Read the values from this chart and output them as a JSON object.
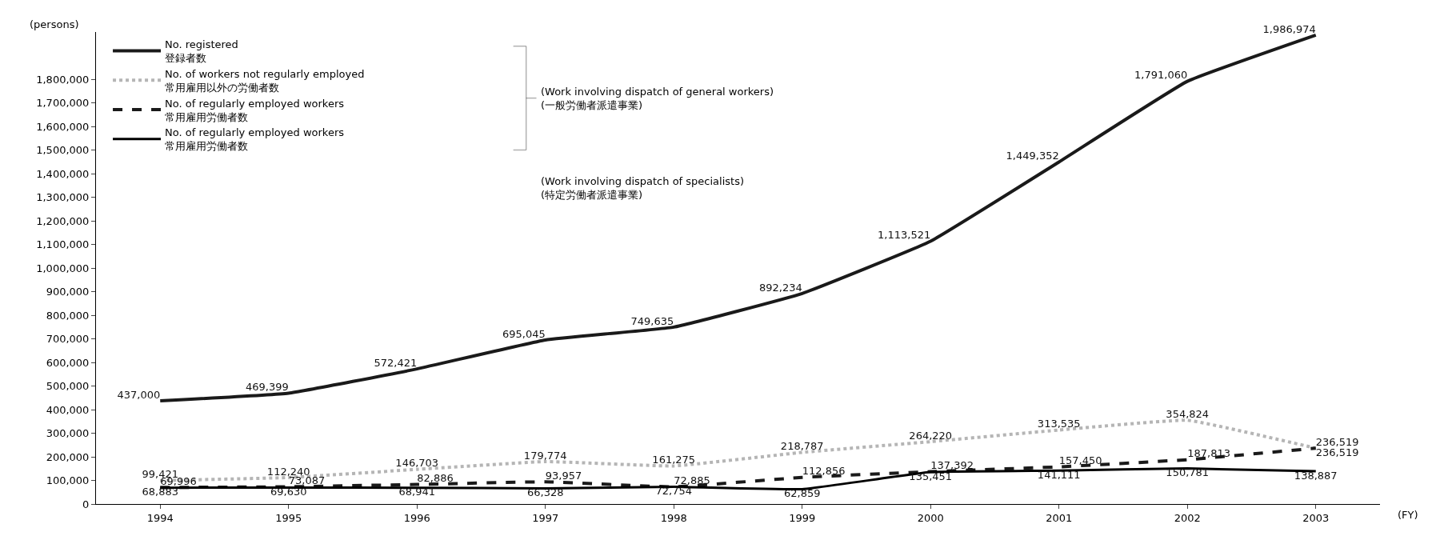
{
  "chart_data": {
    "type": "line",
    "ylabel": "(persons)",
    "xlabel": "(FY)",
    "categories": [
      "1994",
      "1995",
      "1996",
      "1997",
      "1998",
      "1999",
      "2000",
      "2001",
      "2002",
      "2003"
    ],
    "ylim": [
      0,
      2000000
    ],
    "yticks": [
      0,
      {
        "value": 100000,
        "label": "100,000"
      },
      {
        "value": 200000,
        "label": "200,000"
      },
      {
        "value": 300000,
        "label": "300,000"
      },
      {
        "value": 400000,
        "label": "400,000"
      },
      {
        "value": 500000,
        "label": "500,000"
      },
      {
        "value": 600000,
        "label": "600,000"
      },
      {
        "value": 700000,
        "label": "700,000"
      },
      {
        "value": 800000,
        "label": "800,000"
      },
      {
        "value": 900000,
        "label": "900,000"
      },
      {
        "value": 1000000,
        "label": "1,000,000"
      },
      {
        "value": 1100000,
        "label": "1,100,000"
      },
      {
        "value": 1200000,
        "label": "1,200,000"
      },
      {
        "value": 1300000,
        "label": "1,300,000"
      },
      {
        "value": 1400000,
        "label": "1,400,000"
      },
      {
        "value": 1500000,
        "label": "1,500,000"
      },
      {
        "value": 1600000,
        "label": "1,600,000"
      },
      {
        "value": 1700000,
        "label": "1,700,000"
      },
      {
        "value": 1800000,
        "label": "1,800,000"
      }
    ],
    "series": [
      {
        "name": "No. registered\n登録者数",
        "color": "#1a1a1a",
        "line_style": "solid",
        "values": [
          437000,
          469399,
          572421,
          695045,
          749635,
          892234,
          1113521,
          1449352,
          1791060,
          1986974
        ],
        "value_labels": [
          "437,000",
          "469,399",
          "572,421",
          "695,045",
          "749,635",
          "892,234",
          "1,113,521",
          "1,449,352",
          "1,791,060",
          "1,986,974"
        ]
      },
      {
        "name": "No. of workers not regularly employed\n常用雇用以外の労働者数",
        "color": "#b5b5b5",
        "line_style": "dotted",
        "values": [
          99421,
          112240,
          146703,
          179774,
          161275,
          218787,
          264220,
          313535,
          354824,
          236519
        ],
        "value_labels": [
          "99,421",
          "112,240",
          "146,703",
          "179,774",
          "161,275",
          "218,787",
          "264,220",
          "313,535",
          "354,824",
          "236,519"
        ]
      },
      {
        "name": "No. of regularly employed workers\n常用雇用労働者数",
        "color": "#1a1a1a",
        "line_style": "dashed",
        "values": [
          69996,
          73087,
          82886,
          93957,
          72885,
          112856,
          137392,
          157450,
          187813,
          236519
        ],
        "value_labels": [
          "69,996",
          "73,087",
          "82,886",
          "93,957",
          "72,885",
          "112,856",
          "137,392",
          "157,450",
          "187,813",
          "236,519"
        ]
      },
      {
        "name": "No. of regularly employed workers\n常用雇用労働者数",
        "color": "#000000",
        "line_style": "solid",
        "values": [
          68883,
          69630,
          68941,
          66328,
          72754,
          62859,
          135451,
          141111,
          150781,
          138887
        ],
        "value_labels": [
          "68,883",
          "69,630",
          "68,941",
          "66,328",
          "72,754",
          "62,859",
          "135,451",
          "141,111",
          "150,781",
          "138,887"
        ]
      }
    ],
    "annotations": [
      "(Work involving dispatch of general workers)\n(一般労働者派遣事業)",
      "(Work involving dispatch of specialists)\n(特定労働者派遣事業)"
    ],
    "marker": "none",
    "grid": false,
    "legend": "top left"
  }
}
